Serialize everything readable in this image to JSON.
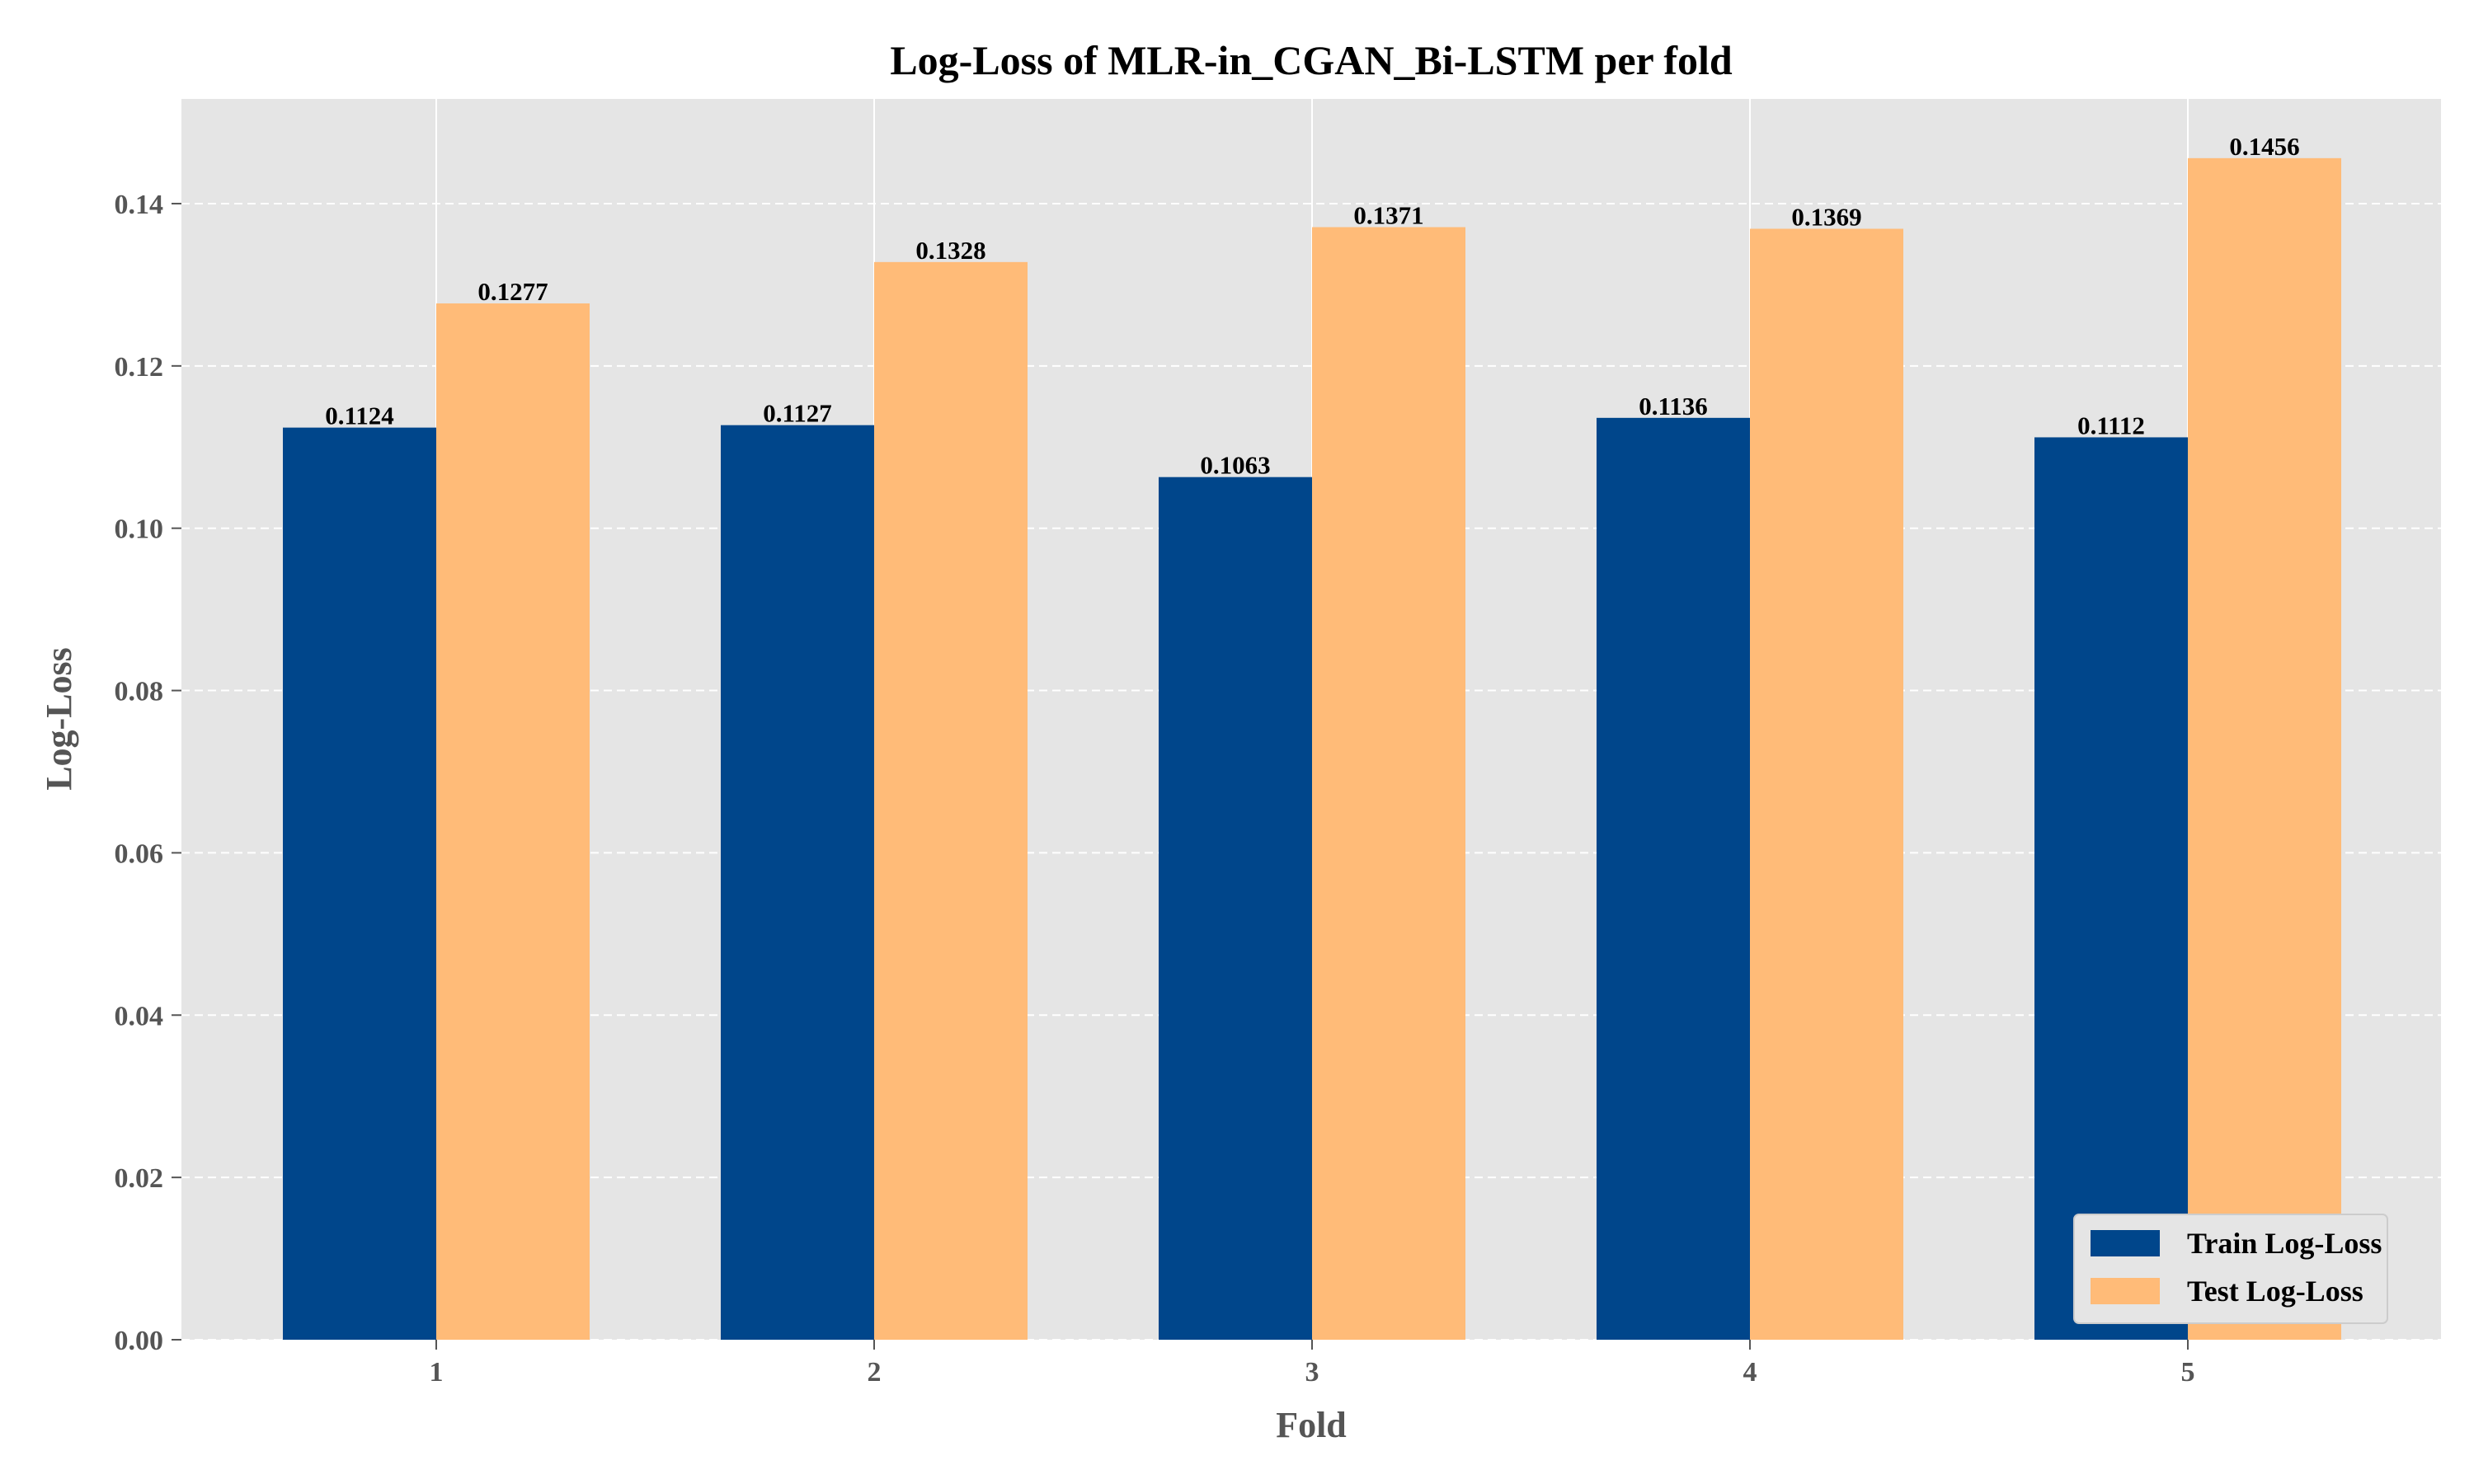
{
  "chart_data": {
    "type": "bar",
    "title": "Log-Loss of MLR-in_CGAN_Bi-LSTM per fold",
    "xlabel": "Fold",
    "ylabel": "Log-Loss",
    "categories": [
      "1",
      "2",
      "3",
      "4",
      "5"
    ],
    "series": [
      {
        "name": "Train Log-Loss",
        "color": "#00468b",
        "values": [
          0.1124,
          0.1127,
          0.1063,
          0.1136,
          0.1112
        ],
        "labels": [
          "0.1124",
          "0.1127",
          "0.1063",
          "0.1136",
          "0.1112"
        ]
      },
      {
        "name": "Test Log-Loss",
        "color": "#ffbb78",
        "values": [
          0.1277,
          0.1328,
          0.1371,
          0.1369,
          0.1456
        ],
        "labels": [
          "0.1277",
          "0.1328",
          "0.1371",
          "0.1369",
          "0.1456"
        ]
      }
    ],
    "ylim": [
      0,
      0.1529
    ],
    "yticks": [
      "0.00",
      "0.02",
      "0.04",
      "0.06",
      "0.08",
      "0.10",
      "0.12",
      "0.14"
    ],
    "grid": true,
    "legend_position": "lower-right",
    "plot_background": "#e5e5e5"
  }
}
